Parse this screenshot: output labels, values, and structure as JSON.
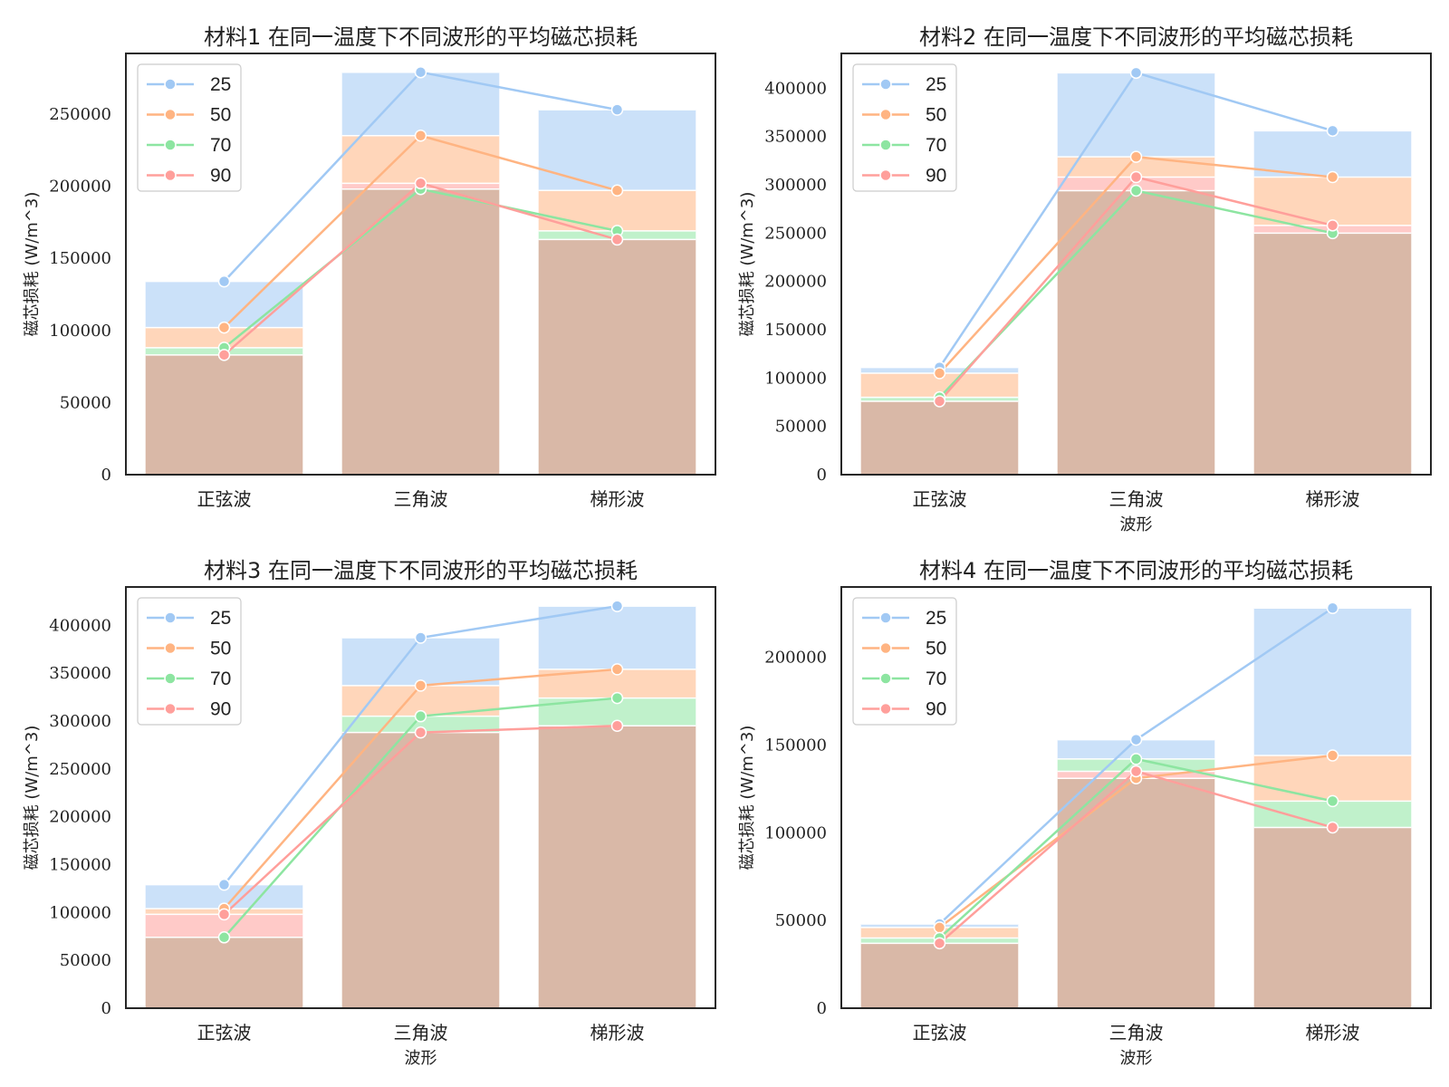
{
  "colors": {
    "t25": "#a1c9f4",
    "t50": "#ffb482",
    "t70": "#8de5a1",
    "t90": "#ff9f9b"
  },
  "chart_data": [
    {
      "type": "bar",
      "title": "材料1 在同一温度下不同波形的平均磁芯损耗",
      "xlabel": "",
      "ylabel": "磁芯损耗 (W/m^3)",
      "categories": [
        "正弦波",
        "三角波",
        "梯形波"
      ],
      "yticks": [
        0,
        50000,
        100000,
        150000,
        200000,
        250000
      ],
      "ylim": [
        0,
        292000
      ],
      "legend": "top-left",
      "series": [
        {
          "name": "25",
          "color": "#a1c9f4",
          "values": [
            134000,
            279000,
            253000
          ]
        },
        {
          "name": "50",
          "color": "#ffb482",
          "values": [
            102000,
            235000,
            197000
          ]
        },
        {
          "name": "70",
          "color": "#8de5a1",
          "values": [
            88000,
            198000,
            169000
          ]
        },
        {
          "name": "90",
          "color": "#ff9f9b",
          "values": [
            83000,
            202000,
            163000
          ]
        }
      ]
    },
    {
      "type": "bar",
      "title": "材料2 在同一温度下不同波形的平均磁芯损耗",
      "xlabel": "波形",
      "ylabel": "磁芯损耗 (W/m^3)",
      "categories": [
        "正弦波",
        "三角波",
        "梯形波"
      ],
      "yticks": [
        0,
        50000,
        100000,
        150000,
        200000,
        250000,
        300000,
        350000,
        400000
      ],
      "ylim": [
        0,
        436000
      ],
      "legend": "top-left",
      "series": [
        {
          "name": "25",
          "color": "#a1c9f4",
          "values": [
            111000,
            416000,
            356000
          ]
        },
        {
          "name": "50",
          "color": "#ffb482",
          "values": [
            105000,
            329000,
            308000
          ]
        },
        {
          "name": "70",
          "color": "#8de5a1",
          "values": [
            80000,
            294000,
            250000
          ]
        },
        {
          "name": "90",
          "color": "#ff9f9b",
          "values": [
            76000,
            308000,
            258000
          ]
        }
      ]
    },
    {
      "type": "bar",
      "title": "材料3 在同一温度下不同波形的平均磁芯损耗",
      "xlabel": "波形",
      "ylabel": "磁芯损耗 (W/m^3)",
      "categories": [
        "正弦波",
        "三角波",
        "梯形波"
      ],
      "yticks": [
        0,
        50000,
        100000,
        150000,
        200000,
        250000,
        300000,
        350000,
        400000
      ],
      "ylim": [
        0,
        440000
      ],
      "legend": "top-left",
      "series": [
        {
          "name": "25",
          "color": "#a1c9f4",
          "values": [
            129000,
            387000,
            420000
          ]
        },
        {
          "name": "50",
          "color": "#ffb482",
          "values": [
            104000,
            337000,
            354000
          ]
        },
        {
          "name": "70",
          "color": "#8de5a1",
          "values": [
            74000,
            305000,
            324000
          ]
        },
        {
          "name": "90",
          "color": "#ff9f9b",
          "values": [
            98000,
            288000,
            295000
          ]
        }
      ]
    },
    {
      "type": "bar",
      "title": "材料4 在同一温度下不同波形的平均磁芯损耗",
      "xlabel": "波形",
      "ylabel": "磁芯损耗 (W/m^3)",
      "categories": [
        "正弦波",
        "三角波",
        "梯形波"
      ],
      "yticks": [
        0,
        50000,
        100000,
        150000,
        200000
      ],
      "ylim": [
        0,
        240000
      ],
      "legend": "top-left",
      "series": [
        {
          "name": "25",
          "color": "#a1c9f4",
          "values": [
            48000,
            153000,
            228000
          ]
        },
        {
          "name": "50",
          "color": "#ffb482",
          "values": [
            46000,
            131000,
            144000
          ]
        },
        {
          "name": "70",
          "color": "#8de5a1",
          "values": [
            40000,
            142000,
            118000
          ]
        },
        {
          "name": "90",
          "color": "#ff9f9b",
          "values": [
            37000,
            135000,
            103000
          ]
        }
      ]
    }
  ]
}
